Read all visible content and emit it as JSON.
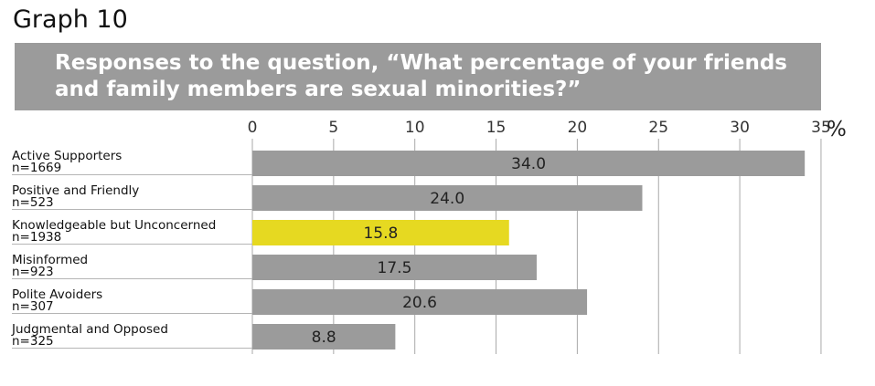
{
  "graph_label": "Graph 10",
  "colors": {
    "title_band": "#9b9b9b",
    "bar_default": "#9b9b9b",
    "bar_highlight": "#e6d921",
    "gridline": "#a9a9a9",
    "separator": "#b5b5b5"
  },
  "chart_data": {
    "type": "bar",
    "orientation": "horizontal",
    "title": "Responses to the question, “What percentage of your friends and family members are sexual minorities?”",
    "title_lines": [
      "Responses to the question, “What percentage of your friends",
      "and family members are sexual minorities?”"
    ],
    "unit_label": "%",
    "xlim": [
      0,
      35
    ],
    "xticks": [
      0,
      5,
      10,
      15,
      20,
      25,
      30,
      35
    ],
    "grid": true,
    "categories": [
      {
        "name": "Active Supporters",
        "n": "n=1669"
      },
      {
        "name": "Positive and Friendly",
        "n": "n=523"
      },
      {
        "name": "Knowledgeable but Unconcerned",
        "n": "n=1938"
      },
      {
        "name": "Misinformed",
        "n": "n=923"
      },
      {
        "name": "Polite Avoiders",
        "n": "n=307"
      },
      {
        "name": "Judgmental and Opposed",
        "n": "n=325"
      }
    ],
    "values": [
      34.0,
      24.0,
      15.8,
      17.5,
      20.6,
      8.8
    ],
    "value_labels": [
      "34.0",
      "24.0",
      "15.8",
      "17.5",
      "20.6",
      "8.8"
    ],
    "highlight_index": 2
  }
}
